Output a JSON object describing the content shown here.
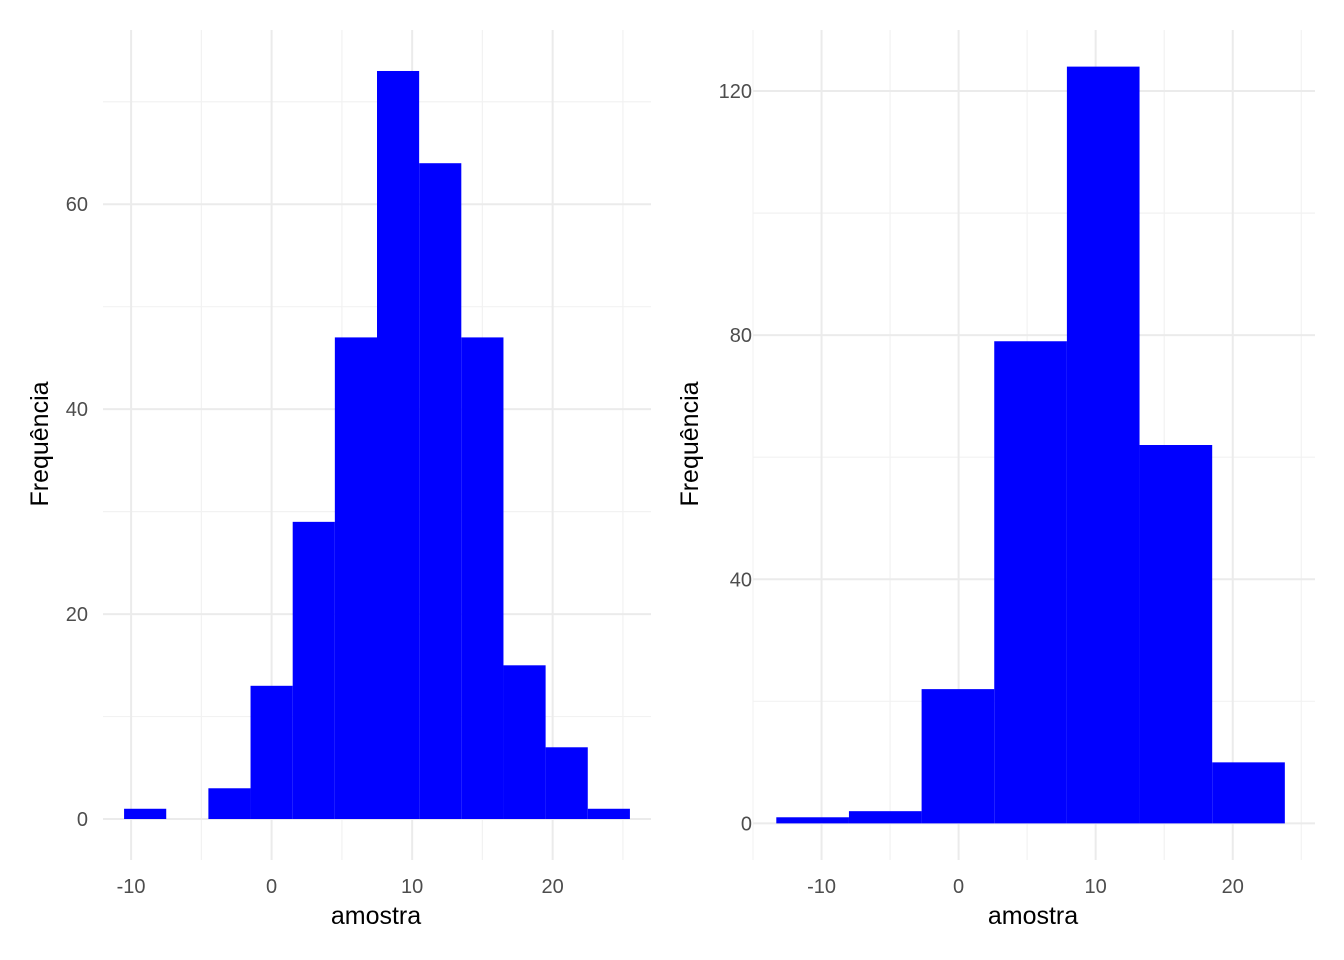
{
  "chart_data": [
    {
      "type": "bar",
      "subtype": "histogram",
      "title": "",
      "xlabel": "amostra",
      "ylabel": "Frequência",
      "bar_color": "#0000ff",
      "grid": true,
      "xlim": [
        -12,
        27
      ],
      "ylim": [
        -4,
        77
      ],
      "x_ticks": [
        -10,
        0,
        10,
        20
      ],
      "x_tick_labels": [
        "-10",
        "0",
        "10",
        "20"
      ],
      "y_ticks": [
        0,
        20,
        40,
        60
      ],
      "y_tick_labels": [
        "0",
        "20",
        "40",
        "60"
      ],
      "bins": [
        {
          "x0": -10.5,
          "x1": -7.5,
          "count": 1
        },
        {
          "x0": -7.5,
          "x1": -4.5,
          "count": 0
        },
        {
          "x0": -4.5,
          "x1": -1.5,
          "count": 3
        },
        {
          "x0": -1.5,
          "x1": 1.5,
          "count": 13
        },
        {
          "x0": 1.5,
          "x1": 4.5,
          "count": 29
        },
        {
          "x0": 4.5,
          "x1": 7.5,
          "count": 47
        },
        {
          "x0": 7.5,
          "x1": 10.5,
          "count": 73
        },
        {
          "x0": 10.5,
          "x1": 13.5,
          "count": 64
        },
        {
          "x0": 13.5,
          "x1": 16.5,
          "count": 47
        },
        {
          "x0": 16.5,
          "x1": 19.5,
          "count": 15
        },
        {
          "x0": 19.5,
          "x1": 22.5,
          "count": 7
        },
        {
          "x0": 22.5,
          "x1": 25.5,
          "count": 1
        }
      ]
    },
    {
      "type": "bar",
      "subtype": "histogram",
      "title": "",
      "xlabel": "amostra",
      "ylabel": "Frequência",
      "bar_color": "#0000ff",
      "grid": true,
      "xlim": [
        -15,
        26
      ],
      "ylim": [
        -6,
        130
      ],
      "x_ticks": [
        -10,
        0,
        10,
        20
      ],
      "x_tick_labels": [
        "-10",
        "0",
        "10",
        "20"
      ],
      "y_ticks": [
        0,
        40,
        80,
        120
      ],
      "y_tick_labels": [
        "0",
        "40",
        "80",
        "120"
      ],
      "bins": [
        {
          "x0": -13.3,
          "x1": -8.0,
          "count": 1
        },
        {
          "x0": -8.0,
          "x1": -2.7,
          "count": 2
        },
        {
          "x0": -2.7,
          "x1": 2.6,
          "count": 22
        },
        {
          "x0": 2.6,
          "x1": 7.9,
          "count": 79
        },
        {
          "x0": 7.9,
          "x1": 13.2,
          "count": 124
        },
        {
          "x0": 13.2,
          "x1": 18.5,
          "count": 62
        },
        {
          "x0": 18.5,
          "x1": 23.8,
          "count": 10
        }
      ]
    }
  ]
}
